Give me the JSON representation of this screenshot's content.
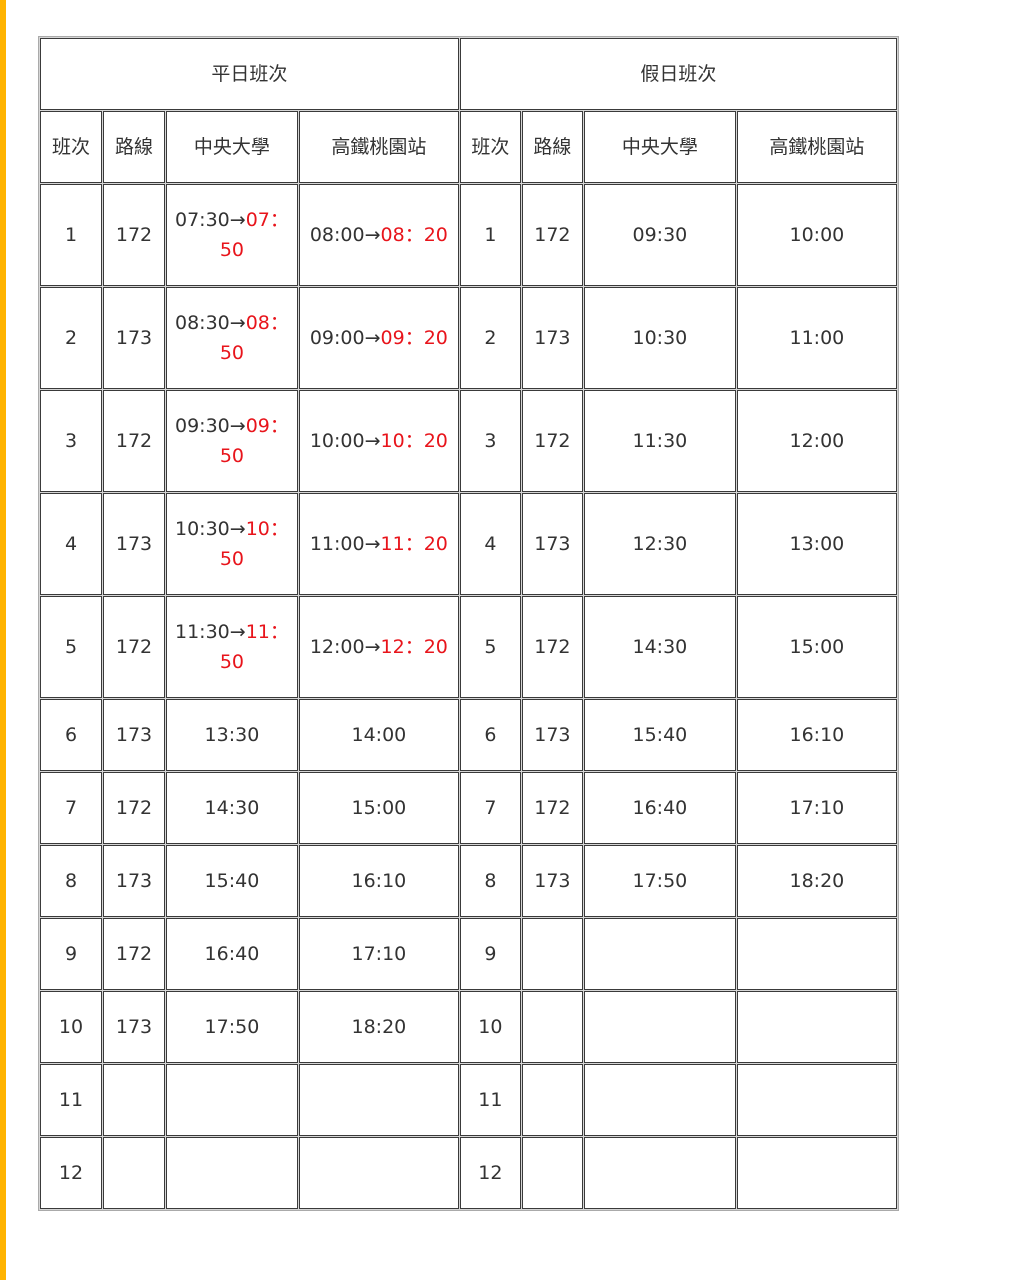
{
  "accent_color": "#FFB300",
  "highlight_color": "#e8141b",
  "sections": {
    "weekday": "平日班次",
    "holiday": "假日班次"
  },
  "columns": [
    "班次",
    "路線",
    "中央大學",
    "高鐵桃園站"
  ],
  "weekday_rows": [
    {
      "no": "1",
      "route": "172",
      "ncu": [
        "07:30→",
        "07：50"
      ],
      "hsr": [
        "08:00→",
        "08：20"
      ]
    },
    {
      "no": "2",
      "route": "173",
      "ncu": [
        "08:30→",
        "08：50"
      ],
      "hsr": [
        "09:00→",
        "09：20"
      ]
    },
    {
      "no": "3",
      "route": "172",
      "ncu": [
        "09:30→",
        "09：50"
      ],
      "hsr": [
        "10:00→",
        "10：20"
      ]
    },
    {
      "no": "4",
      "route": "173",
      "ncu": [
        "10:30→",
        "10：50"
      ],
      "hsr": [
        "11:00→",
        "11：20"
      ]
    },
    {
      "no": "5",
      "route": "172",
      "ncu": [
        "11:30→",
        "11：50"
      ],
      "hsr": [
        "12:00→",
        "12：20"
      ]
    },
    {
      "no": "6",
      "route": "173",
      "ncu": [
        "13:30",
        ""
      ],
      "hsr": [
        "14:00",
        ""
      ]
    },
    {
      "no": "7",
      "route": "172",
      "ncu": [
        "14:30",
        ""
      ],
      "hsr": [
        "15:00",
        ""
      ]
    },
    {
      "no": "8",
      "route": "173",
      "ncu": [
        "15:40",
        ""
      ],
      "hsr": [
        "16:10",
        ""
      ]
    },
    {
      "no": "9",
      "route": "172",
      "ncu": [
        "16:40",
        ""
      ],
      "hsr": [
        "17:10",
        ""
      ]
    },
    {
      "no": "10",
      "route": "173",
      "ncu": [
        "17:50",
        ""
      ],
      "hsr": [
        "18:20",
        ""
      ]
    },
    {
      "no": "11",
      "route": "",
      "ncu": [
        "",
        ""
      ],
      "hsr": [
        "",
        ""
      ]
    },
    {
      "no": "12",
      "route": "",
      "ncu": [
        "",
        ""
      ],
      "hsr": [
        "",
        ""
      ]
    }
  ],
  "holiday_rows": [
    {
      "no": "1",
      "route": "172",
      "ncu": "09:30",
      "hsr": "10:00"
    },
    {
      "no": "2",
      "route": "173",
      "ncu": "10:30",
      "hsr": "11:00"
    },
    {
      "no": "3",
      "route": "172",
      "ncu": "11:30",
      "hsr": "12:00"
    },
    {
      "no": "4",
      "route": "173",
      "ncu": "12:30",
      "hsr": "13:00"
    },
    {
      "no": "5",
      "route": "172",
      "ncu": "14:30",
      "hsr": "15:00"
    },
    {
      "no": "6",
      "route": "173",
      "ncu": "15:40",
      "hsr": "16:10"
    },
    {
      "no": "7",
      "route": "172",
      "ncu": "16:40",
      "hsr": "17:10"
    },
    {
      "no": "8",
      "route": "173",
      "ncu": "17:50",
      "hsr": "18:20"
    },
    {
      "no": "9",
      "route": "",
      "ncu": "",
      "hsr": ""
    },
    {
      "no": "10",
      "route": "",
      "ncu": "",
      "hsr": ""
    },
    {
      "no": "11",
      "route": "",
      "ncu": "",
      "hsr": ""
    },
    {
      "no": "12",
      "route": "",
      "ncu": "",
      "hsr": ""
    }
  ]
}
